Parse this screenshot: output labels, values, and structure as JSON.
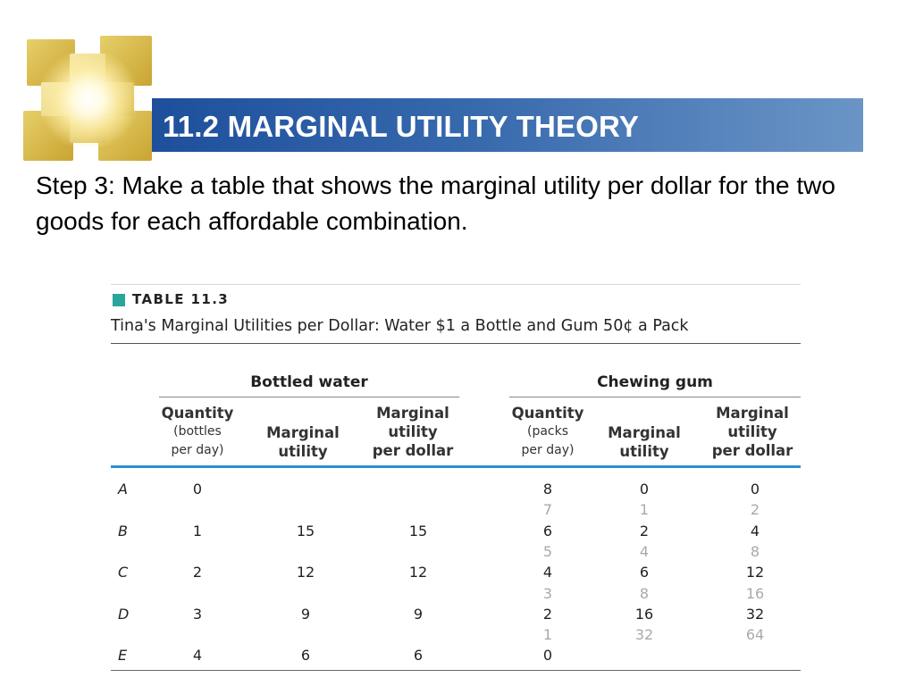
{
  "slide": {
    "title": "11.2 MARGINAL UTILITY THEORY",
    "body": "Step 3: Make a table that shows the marginal utility per dollar for the two goods for each affordable combination."
  },
  "table": {
    "tag": "TABLE 11.3",
    "caption": "Tina's Marginal Utilities per Dollar: Water $1 a Bottle and Gum 50¢ a Pack",
    "groups": [
      "Bottled water",
      "Chewing gum"
    ],
    "headers": {
      "water_qty": "Quantity",
      "water_qty_sub1": "(bottles",
      "water_qty_sub2": "per day)",
      "water_mu1": "Marginal",
      "water_mu2": "utility",
      "water_mupd1": "Marginal",
      "water_mupd2": "utility",
      "water_mupd3": "per dollar",
      "gum_qty": "Quantity",
      "gum_qty_sub1": "(packs",
      "gum_qty_sub2": "per day)",
      "gum_mu1": "Marginal",
      "gum_mu2": "utility",
      "gum_mupd1": "Marginal",
      "gum_mupd2": "utility",
      "gum_mupd3": "per dollar"
    },
    "rows": [
      {
        "label": "A",
        "wq": "0",
        "wmu": "",
        "wmupd": "",
        "gq": "8",
        "gmu": "0",
        "gmupd": "0"
      },
      {
        "label": "",
        "wq": "",
        "wmu": "",
        "wmupd": "",
        "gq": "7",
        "gmu": "1",
        "gmupd": "2"
      },
      {
        "label": "B",
        "wq": "1",
        "wmu": "15",
        "wmupd": "15",
        "gq": "6",
        "gmu": "2",
        "gmupd": "4"
      },
      {
        "label": "",
        "wq": "",
        "wmu": "",
        "wmupd": "",
        "gq": "5",
        "gmu": "4",
        "gmupd": "8"
      },
      {
        "label": "C",
        "wq": "2",
        "wmu": "12",
        "wmupd": "12",
        "gq": "4",
        "gmu": "6",
        "gmupd": "12"
      },
      {
        "label": "",
        "wq": "",
        "wmu": "",
        "wmupd": "",
        "gq": "3",
        "gmu": "8",
        "gmupd": "16"
      },
      {
        "label": "D",
        "wq": "3",
        "wmu": "9",
        "wmupd": "9",
        "gq": "2",
        "gmu": "16",
        "gmupd": "32"
      },
      {
        "label": "",
        "wq": "",
        "wmu": "",
        "wmupd": "",
        "gq": "1",
        "gmu": "32",
        "gmupd": "64"
      },
      {
        "label": "E",
        "wq": "4",
        "wmu": "6",
        "wmupd": "6",
        "gq": "0",
        "gmu": "",
        "gmupd": ""
      }
    ]
  },
  "colors": {
    "title_bar": "#3769ad",
    "table_tag": "#2aa59a",
    "header_rule": "#2f8fd0",
    "muted_row": "#a9a9a9"
  }
}
